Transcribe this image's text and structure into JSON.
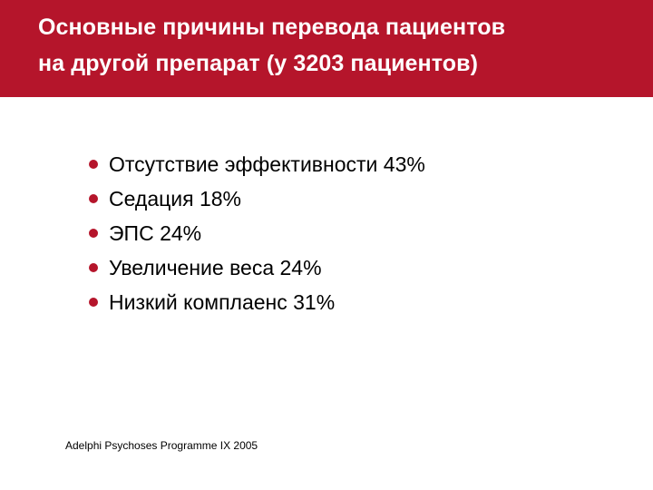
{
  "slide": {
    "title_lines": [
      "Основные причины перевода пациентов",
      "на другой препарат (у 3203 пациентов)"
    ],
    "bullets": [
      "Отсутствие эффективности 43%",
      "Седация 18%",
      "ЭПС 24%",
      "Увеличение веса 24%",
      "Низкий комплаенс 31%"
    ],
    "source": "Adelphi Psychoses Programme IX 2005"
  },
  "colors": {
    "title_band": "#b5152b",
    "title_text": "#ffffff",
    "bullet_dot": "#b5152b",
    "body_text": "#000000",
    "background": "#ffffff"
  },
  "icons": {
    "bullet": "filled-circle-bullet"
  }
}
